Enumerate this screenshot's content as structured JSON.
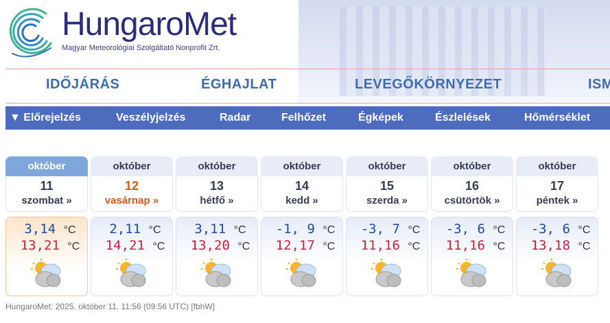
{
  "brand": {
    "name": "HungaroMet",
    "tagline": "Magyar Meteorológiai Szolgáltató Nonprofit Zrt."
  },
  "topnav": [
    "IDŐJÁRÁS",
    "ÉGHAJLAT",
    "LEVEGŐKÖRNYEZET",
    "ISM"
  ],
  "subnav": [
    "▼ Előrejelzés",
    "Veszélyjelzés",
    "Radar",
    "Felhőzet",
    "Égképek",
    "Észlelések",
    "Hőmérséklet"
  ],
  "unit": "°C",
  "days": [
    {
      "month": "október",
      "day": "11",
      "weekday": "szombat »",
      "min": "3,14",
      "max": "13,21",
      "selected": true,
      "icon": "partly-cloudy-icon"
    },
    {
      "month": "október",
      "day": "12",
      "weekday": "vasárnap »",
      "min": "2,11",
      "max": "14,21",
      "sunday": true,
      "icon": "partly-cloudy-icon"
    },
    {
      "month": "október",
      "day": "13",
      "weekday": "hétfő »",
      "min": "3,11",
      "max": "13,20",
      "icon": "partly-cloudy-icon"
    },
    {
      "month": "október",
      "day": "14",
      "weekday": "kedd »",
      "min": "-1, 9",
      "max": "12,17",
      "icon": "partly-cloudy-icon"
    },
    {
      "month": "október",
      "day": "15",
      "weekday": "szerda »",
      "min": "-3, 7",
      "max": "11,16",
      "icon": "partly-cloudy-icon"
    },
    {
      "month": "október",
      "day": "16",
      "weekday": "csütörtök »",
      "min": "-3, 6",
      "max": "11,16",
      "icon": "partly-cloudy-icon"
    },
    {
      "month": "október",
      "day": "17",
      "weekday": "péntek »",
      "min": "-3, 6",
      "max": "13,18",
      "icon": "partly-cloudy-icon"
    }
  ],
  "footer": "HungaroMet: 2025. október 11. 11:56 (09:56  UTC)  [fbhW]",
  "colors": {
    "bar": "#4d6cbd",
    "min": "#1e4aa3",
    "max": "#c6223a",
    "sunday": "#d35a1b"
  }
}
